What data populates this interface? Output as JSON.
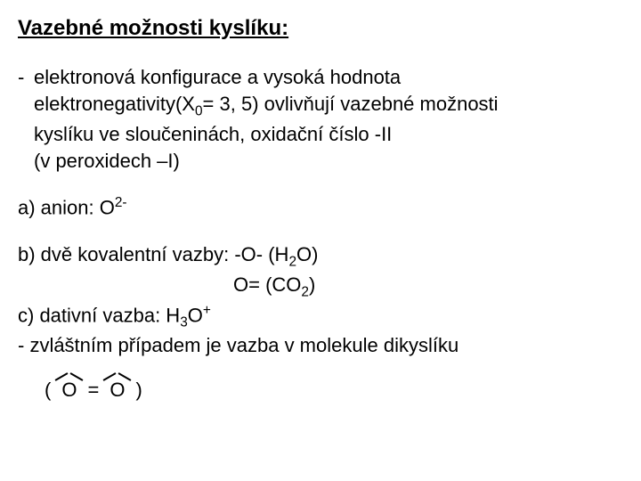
{
  "title": "Vazebné možnosti kyslíku:",
  "bullet": {
    "dash": "-",
    "l1": "elektronová konfigurace a vysoká hodnota",
    "l2a": "elektronegativity(X",
    "l2sub": "0",
    "l2b": "= 3, 5) ovlivňují vazebné možnosti",
    "l3": "kyslíku ve sloučeninách, oxidační číslo -II",
    "l4": "(v peroxidech –I)"
  },
  "a": {
    "pre": "a) anion: O",
    "sup": "2-"
  },
  "b": {
    "pre": "b) dvě kovalentní vazby: -O- (H",
    "sub1": "2",
    "mid": "O)",
    "line2pre": "O= (CO",
    "sub2": "2",
    "line2post": ")"
  },
  "c": {
    "pre": "c) dativní vazba: H",
    "sub": "3",
    "mid": "O",
    "sup": "+"
  },
  "d": "- zvláštním případem je vazba v molekule dikyslíku",
  "formula": {
    "open": "(",
    "o1": "O",
    "eq": " = ",
    "o2": "O",
    "close": ")"
  },
  "style": {
    "bg": "#ffffff",
    "text": "#000000",
    "title_fontsize": 24,
    "body_fontsize": 22,
    "font_family": "Arial"
  }
}
